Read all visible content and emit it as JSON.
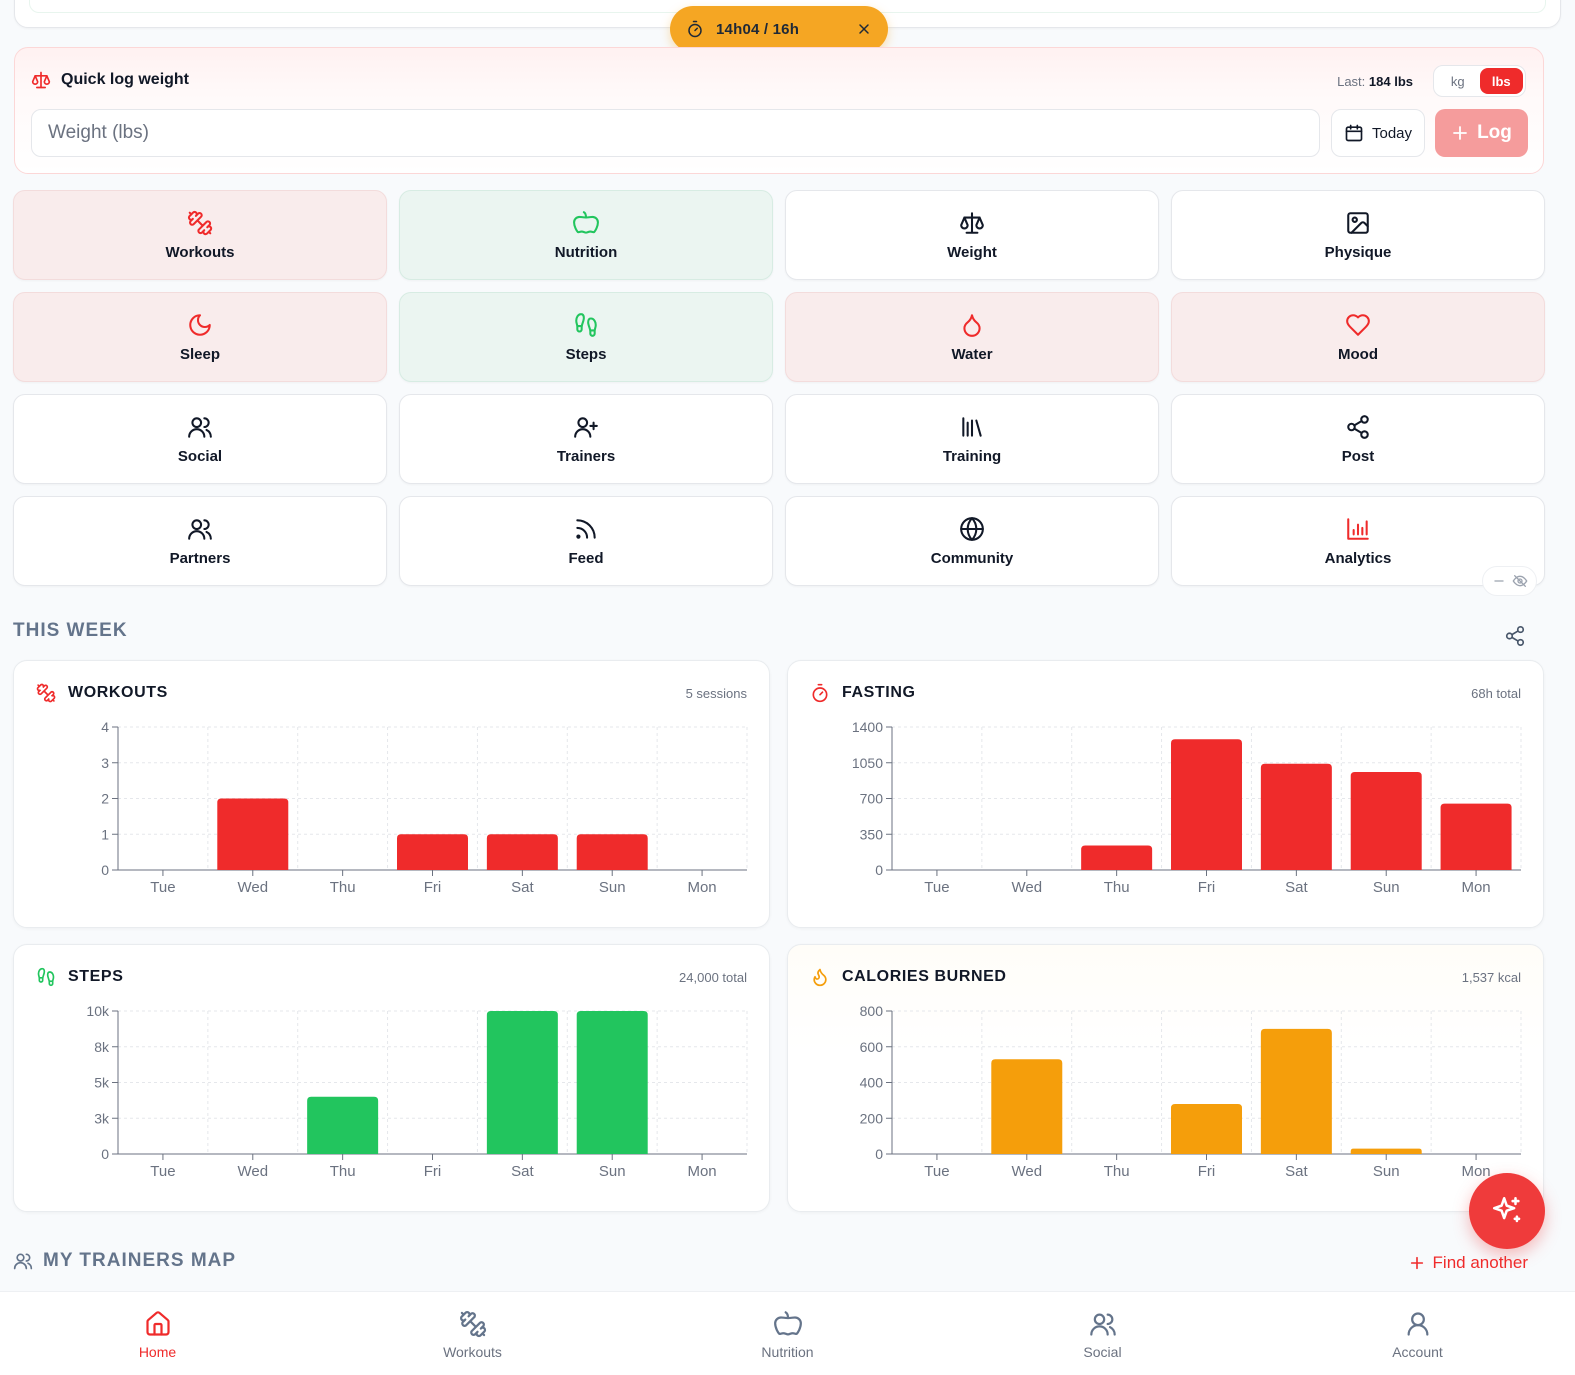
{
  "timer": {
    "text": "14h04 / 16h"
  },
  "quick_log": {
    "title": "Quick log weight",
    "last_label": "Last:",
    "last_value": "184 lbs",
    "units": [
      "kg",
      "lbs"
    ],
    "active_unit": "lbs",
    "placeholder": "Weight (lbs)",
    "date_label": "Today",
    "log_label": "Log"
  },
  "tiles": [
    {
      "label": "Workouts",
      "icon": "dumbbell-icon",
      "tint": "red"
    },
    {
      "label": "Nutrition",
      "icon": "apple-icon",
      "tint": "green"
    },
    {
      "label": "Weight",
      "icon": "scale-icon",
      "tint": "none"
    },
    {
      "label": "Physique",
      "icon": "image-icon",
      "tint": "none"
    },
    {
      "label": "Sleep",
      "icon": "moon-icon",
      "tint": "red"
    },
    {
      "label": "Steps",
      "icon": "footprints-icon",
      "tint": "green"
    },
    {
      "label": "Water",
      "icon": "droplet-icon",
      "tint": "red"
    },
    {
      "label": "Mood",
      "icon": "heart-icon",
      "tint": "red"
    },
    {
      "label": "Social",
      "icon": "users-icon",
      "tint": "none"
    },
    {
      "label": "Trainers",
      "icon": "user-plus-icon",
      "tint": "none"
    },
    {
      "label": "Training",
      "icon": "library-icon",
      "tint": "none"
    },
    {
      "label": "Post",
      "icon": "share-icon",
      "tint": "none"
    },
    {
      "label": "Partners",
      "icon": "users-icon",
      "tint": "none"
    },
    {
      "label": "Feed",
      "icon": "rss-icon",
      "tint": "none"
    },
    {
      "label": "Community",
      "icon": "globe-icon",
      "tint": "none"
    },
    {
      "label": "Analytics",
      "icon": "bar-chart-icon",
      "tint": "none"
    }
  ],
  "this_week": {
    "title": "THIS WEEK"
  },
  "colors": {
    "red": "#ef2b2b",
    "green": "#22c55e",
    "orange": "#f59e0b",
    "slate": "#64748b"
  },
  "chart_data": [
    {
      "type": "bar",
      "title": "WORKOUTS",
      "summary": "5 sessions",
      "color": "#ef2b2b",
      "categories": [
        "Tue",
        "Wed",
        "Thu",
        "Fri",
        "Sat",
        "Sun",
        "Mon"
      ],
      "values": [
        0,
        2,
        0,
        1,
        1,
        1,
        0
      ],
      "ylim": [
        0,
        4
      ],
      "yticks": [
        0,
        1,
        2,
        3,
        4
      ],
      "ytick_labels": [
        "0",
        "1",
        "2",
        "3",
        "4"
      ]
    },
    {
      "type": "bar",
      "title": "FASTING",
      "summary": "68h total",
      "color": "#ef2b2b",
      "categories": [
        "Tue",
        "Wed",
        "Thu",
        "Fri",
        "Sat",
        "Sun",
        "Mon"
      ],
      "values": [
        0,
        0,
        240,
        1280,
        1040,
        960,
        650
      ],
      "ylim": [
        0,
        1400
      ],
      "yticks": [
        0,
        350,
        700,
        1050,
        1400
      ],
      "ytick_labels": [
        "0",
        "350",
        "700",
        "1050",
        "1400"
      ]
    },
    {
      "type": "bar",
      "title": "STEPS",
      "summary": "24,000 total",
      "color": "#22c55e",
      "categories": [
        "Tue",
        "Wed",
        "Thu",
        "Fri",
        "Sat",
        "Sun",
        "Mon"
      ],
      "values": [
        0,
        0,
        4000,
        0,
        10000,
        10000,
        0
      ],
      "ylim": [
        0,
        10000
      ],
      "yticks": [
        0,
        2500,
        5000,
        7500,
        10000
      ],
      "ytick_labels": [
        "0",
        "3k",
        "5k",
        "8k",
        "10k"
      ]
    },
    {
      "type": "bar",
      "title": "CALORIES BURNED",
      "summary": "1,537 kcal",
      "color": "#f59e0b",
      "categories": [
        "Tue",
        "Wed",
        "Thu",
        "Fri",
        "Sat",
        "Sun",
        "Mon"
      ],
      "values": [
        0,
        530,
        0,
        280,
        700,
        30,
        0
      ],
      "ylim": [
        0,
        800
      ],
      "yticks": [
        0,
        200,
        400,
        600,
        800
      ],
      "ytick_labels": [
        "0",
        "200",
        "400",
        "600",
        "800"
      ]
    }
  ],
  "trainers_map": {
    "title": "MY TRAINERS MAP",
    "find_label": "Find another"
  },
  "nav": [
    {
      "label": "Home",
      "icon": "home-icon",
      "active": true
    },
    {
      "label": "Workouts",
      "icon": "dumbbell-icon",
      "active": false
    },
    {
      "label": "Nutrition",
      "icon": "apple-icon",
      "active": false
    },
    {
      "label": "Social",
      "icon": "users-icon",
      "active": false
    },
    {
      "label": "Account",
      "icon": "user-icon",
      "active": false
    }
  ]
}
